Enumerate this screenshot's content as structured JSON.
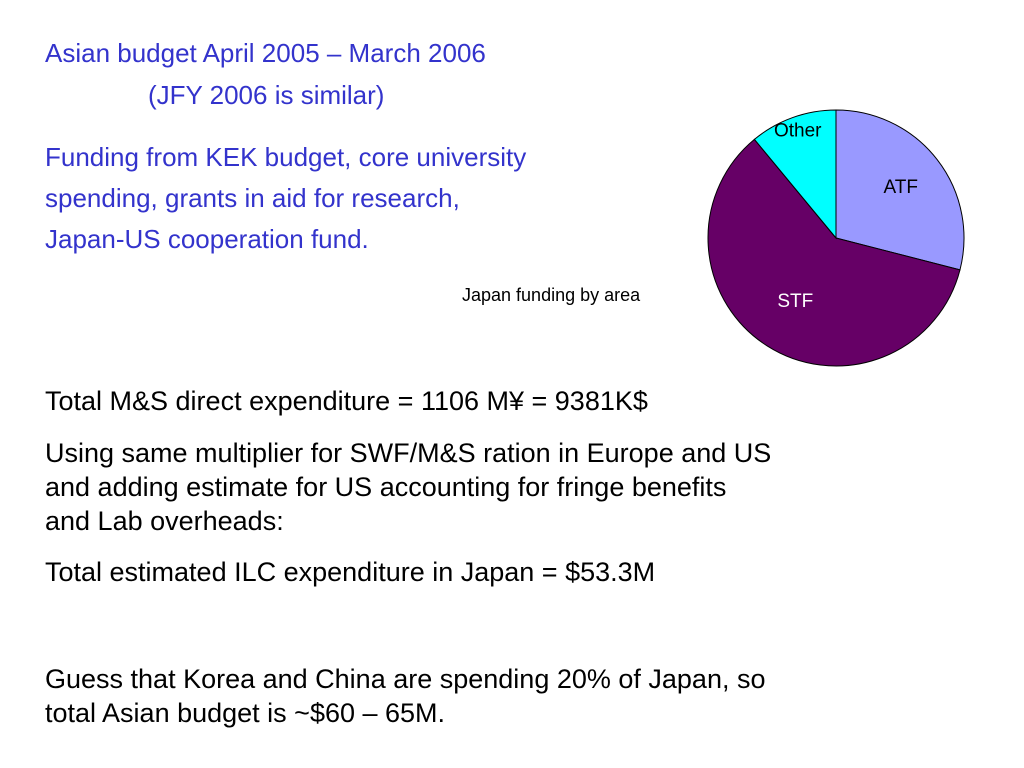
{
  "header": {
    "title": "Asian budget  April 2005 – March 2006",
    "subtitle": "(JFY 2006 is similar)"
  },
  "funding_note": [
    "Funding from KEK budget, core university",
    "spending, grants in aid for research,",
    "Japan-US cooperation fund."
  ],
  "chart_data": {
    "type": "pie",
    "title": "Japan funding by area",
    "categories": [
      "ATF",
      "STF",
      "Other"
    ],
    "values": [
      29,
      60,
      11
    ],
    "colors": [
      "#9999ff",
      "#660066",
      "#00ffff"
    ]
  },
  "body": {
    "paragraphs": [
      [
        "Total M&S direct expenditure = 1106 M¥ = 9381K$"
      ],
      [
        "Using same multiplier for SWF/M&S ration in Europe and US",
        "and adding estimate for US accounting for fringe benefits",
        "and Lab overheads:"
      ],
      [
        "Total estimated ILC expenditure in Japan = $53.3M"
      ],
      [
        "Guess that Korea and China are spending 20% of Japan, so",
        "total Asian budget is ~$60 – 65M."
      ]
    ]
  }
}
